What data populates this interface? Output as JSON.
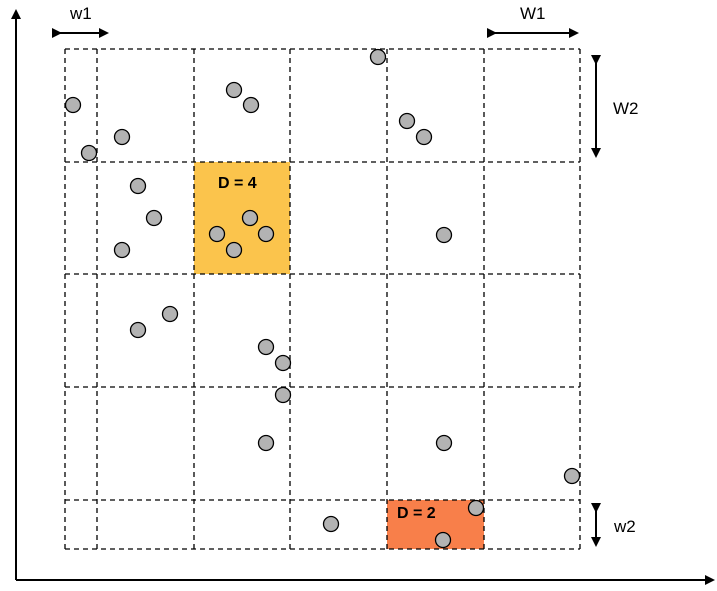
{
  "labels": {
    "w1_top": "w1",
    "W1_top": "W1",
    "W2_right": "W2",
    "w2_right": "w2",
    "density_upper": "D = 4",
    "density_lower": "D = 2"
  },
  "colors": {
    "highlight_upper": "#fbc44c",
    "highlight_lower": "#f87f4a",
    "point_fill": "#b3b3b3",
    "grid_line": "#000000"
  }
}
